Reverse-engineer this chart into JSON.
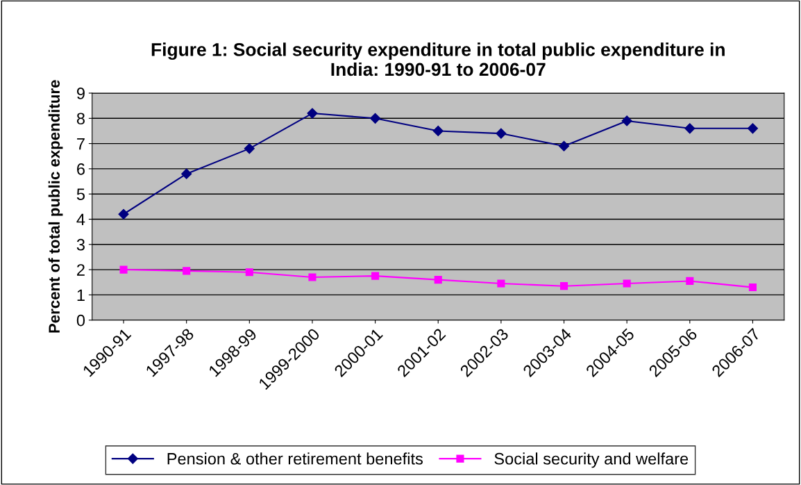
{
  "chart_data": {
    "type": "line",
    "title": "Figure 1: Social security expenditure in total public expenditure in\nIndia: 1990-91 to 2006-07",
    "ylabel": "Percent of total public expenditure",
    "categories": [
      "1990-91",
      "1997-98",
      "1998-99",
      "1999-2000",
      "2000-01",
      "2001-02",
      "2002-03",
      "2003-04",
      "2004-05",
      "2005-06",
      "2006-07"
    ],
    "series": [
      {
        "name": "Pension & other retirement benefits",
        "color": "#000080",
        "marker": "diamond",
        "values": [
          4.2,
          5.8,
          6.8,
          8.2,
          8.0,
          7.5,
          7.4,
          6.9,
          7.9,
          7.6,
          7.6
        ]
      },
      {
        "name": "Social security and welfare",
        "color": "#ff00ff",
        "marker": "square",
        "values": [
          2.0,
          1.95,
          1.9,
          1.7,
          1.75,
          1.6,
          1.45,
          1.35,
          1.45,
          1.55,
          1.3
        ]
      }
    ],
    "ylim": [
      0,
      9
    ],
    "yticks": [
      0,
      1,
      2,
      3,
      4,
      5,
      6,
      7,
      8,
      9
    ],
    "grid": "y",
    "legend": "bottom"
  }
}
